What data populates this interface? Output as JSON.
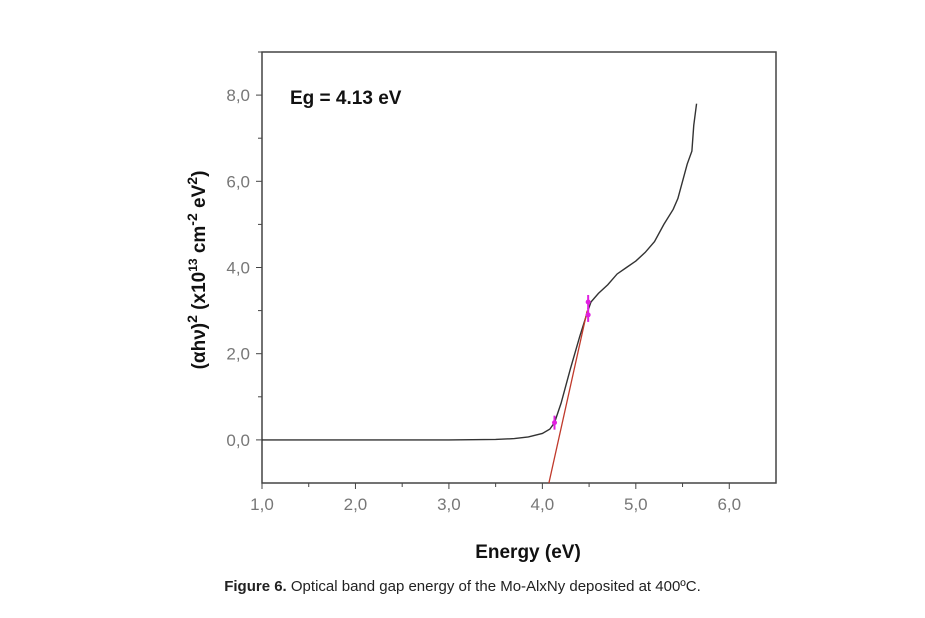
{
  "chart_data": {
    "type": "line",
    "xlabel": "Energy (eV)",
    "ylabel": "(αhν)² (x10¹³ cm⁻² eV²)",
    "ylabel_parts": {
      "base": "(αhν)",
      "sup1": "2",
      "mid": " (x10",
      "sup2": "13",
      "cm": " cm",
      "sup3": "-2",
      "ev": " eV",
      "sup4": "2",
      "end": ")"
    },
    "annotation": "Eg = 4.13 eV",
    "xlim": [
      1.0,
      6.5
    ],
    "ylim": [
      -1.0,
      9.0
    ],
    "xticks": [
      1,
      2,
      3,
      4,
      5,
      6
    ],
    "xtick_labels": [
      "1,0",
      "2,0",
      "3,0",
      "4,0",
      "5,0",
      "6,0"
    ],
    "yticks": [
      0,
      2,
      4,
      6,
      8
    ],
    "ytick_labels": [
      "0,0",
      "2,0",
      "4,0",
      "6,0",
      "8,0"
    ],
    "series": [
      {
        "name": "spectrum",
        "color": "#333333",
        "x": [
          1.0,
          2.0,
          3.0,
          3.5,
          3.7,
          3.85,
          4.0,
          4.08,
          4.13,
          4.2,
          4.3,
          4.4,
          4.48,
          4.52,
          4.6,
          4.7,
          4.8,
          4.9,
          5.0,
          5.1,
          5.2,
          5.3,
          5.4,
          5.45,
          5.5,
          5.55,
          5.6,
          5.62,
          5.65
        ],
        "y": [
          0,
          0,
          0,
          0.01,
          0.03,
          0.07,
          0.15,
          0.25,
          0.4,
          0.85,
          1.65,
          2.4,
          2.95,
          3.2,
          3.4,
          3.6,
          3.85,
          4.0,
          4.15,
          4.35,
          4.6,
          5.0,
          5.35,
          5.6,
          6.0,
          6.4,
          6.7,
          7.3,
          7.8
        ]
      },
      {
        "name": "linear fit",
        "color": "#c0392b",
        "x": [
          4.07,
          4.48
        ],
        "y": [
          -1.0,
          3.0
        ]
      }
    ],
    "markers": {
      "color": "#e020e0",
      "x": [
        4.13,
        4.49,
        4.49
      ],
      "y": [
        0.4,
        2.9,
        3.2
      ]
    }
  },
  "caption": {
    "label": "Figure 6.",
    "text": " Optical band gap energy of the Mo-AlxNy deposited at 400ºC."
  }
}
